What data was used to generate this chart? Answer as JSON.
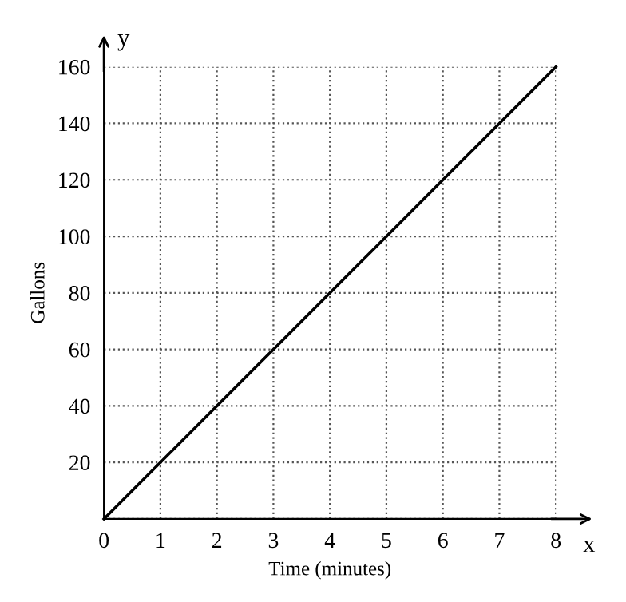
{
  "chart_data": {
    "type": "line",
    "xlabel": "Time (minutes)",
    "ylabel": "Gallons",
    "x": [
      0,
      8
    ],
    "values": [
      0,
      160
    ],
    "color": "#000000",
    "xlim": [
      0,
      8
    ],
    "ylim": [
      0,
      160
    ],
    "xticks": [
      0,
      1,
      2,
      3,
      4,
      5,
      6,
      7,
      8
    ],
    "yticks": [
      {
        "value": 0,
        "label": null
      },
      20,
      40,
      60,
      80,
      100,
      120,
      140,
      160
    ],
    "grid": true,
    "line_style": "solid",
    "annotations": [
      "x",
      "y"
    ]
  }
}
